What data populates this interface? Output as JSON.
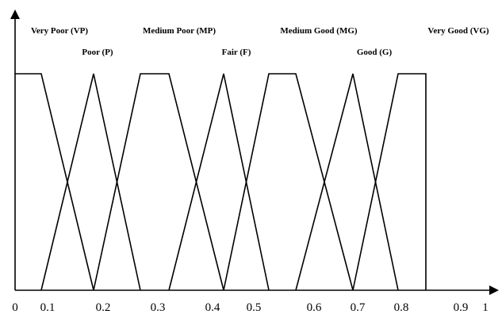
{
  "chart_data": {
    "type": "line",
    "title": "",
    "xlabel": "",
    "ylabel": "",
    "xlim": [
      0,
      1
    ],
    "ylim": [
      0,
      1
    ],
    "grid": false,
    "legend": "none",
    "line_color": "#000000",
    "x_tick_labels": [
      {
        "value": 0,
        "label": "0"
      },
      {
        "value": 0.1,
        "label": "0.1"
      },
      {
        "value": 0.2,
        "label": "0.2"
      },
      {
        "value": 0.3,
        "label": "0.3"
      },
      {
        "value": 0.4,
        "label": "0.4"
      },
      {
        "value": 0.5,
        "label": "0.5"
      },
      {
        "value": 0.6,
        "label": "0.6"
      },
      {
        "value": 0.7,
        "label": "0.7"
      },
      {
        "value": 0.8,
        "label": "0.8"
      },
      {
        "value": 0.9,
        "label": "0.9"
      },
      {
        "value": 1,
        "label": "1"
      }
    ],
    "series": [
      {
        "name": "Very Poor (VP)",
        "x": [
          0,
          0.1,
          0.2
        ],
        "y": [
          1,
          1,
          0
        ]
      },
      {
        "name": "Poor (P)",
        "x": [
          0.1,
          0.2,
          0.3
        ],
        "y": [
          0,
          1,
          0
        ]
      },
      {
        "name": "Medium Poor (MP)",
        "x": [
          0.2,
          0.3,
          0.35,
          0.45
        ],
        "y": [
          0,
          1,
          1,
          0
        ]
      },
      {
        "name": "Fair (F)",
        "x": [
          0.35,
          0.45,
          0.55
        ],
        "y": [
          0,
          1,
          0
        ]
      },
      {
        "name": "Medium Good (MG)",
        "x": [
          0.45,
          0.55,
          0.6,
          0.7
        ],
        "y": [
          0,
          1,
          1,
          0
        ]
      },
      {
        "name": "Good (G)",
        "x": [
          0.6,
          0.7,
          0.8
        ],
        "y": [
          0,
          1,
          0
        ]
      },
      {
        "name": "Very Good (VG)",
        "x": [
          0.7,
          0.8,
          0.9,
          0.9
        ],
        "y": [
          0,
          1,
          1,
          0
        ]
      }
    ]
  }
}
